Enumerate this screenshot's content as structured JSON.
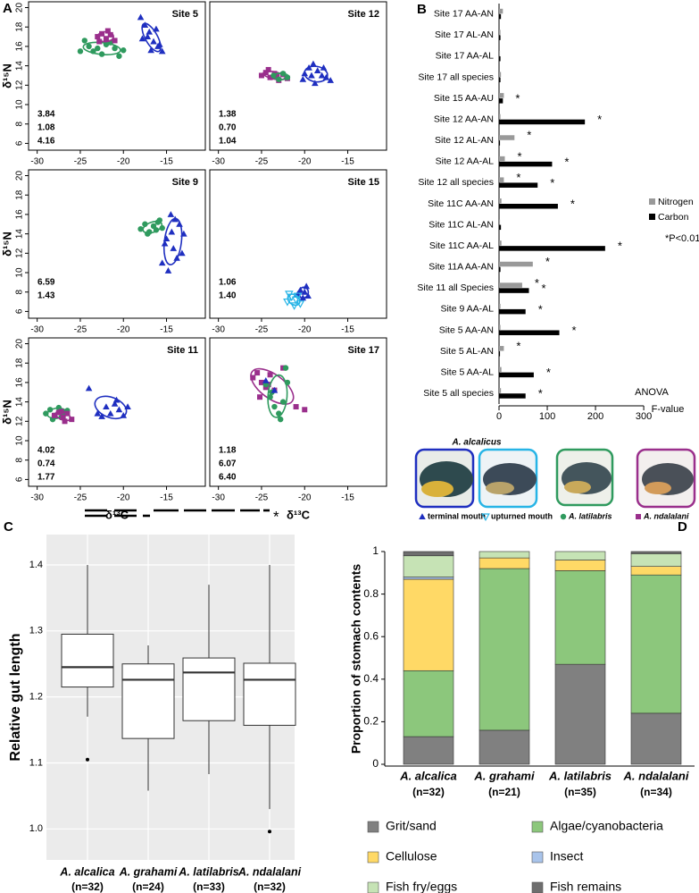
{
  "chart_data": [
    {
      "type": "scatter",
      "panel": "A",
      "title": "Site 5",
      "ylabel": "δ¹⁵N",
      "xlim": [
        -31,
        -10.5
      ],
      "ylim": [
        5.3,
        20.6
      ],
      "xticks": [
        -30,
        -25,
        -20,
        -15
      ],
      "yticks": [
        6,
        8,
        10,
        12,
        14,
        16,
        18,
        20
      ],
      "series": [
        {
          "color": "#1f2fc0",
          "marker": "triangle",
          "x": [
            -18,
            -17.5,
            -17,
            -16.5,
            -16,
            -15.5,
            -17.8,
            -16.8,
            -15.8,
            -17.2,
            -16.2
          ],
          "y": [
            19,
            18.2,
            17.5,
            16.5,
            16,
            15.5,
            16.8,
            15.6,
            16.2,
            17,
            17.8
          ]
        },
        {
          "color": "#2f9a5e",
          "marker": "circle",
          "x": [
            -25,
            -24,
            -23,
            -22.5,
            -22,
            -21,
            -20.5,
            -24.5,
            -23.5,
            -21.5,
            -20
          ],
          "y": [
            15.5,
            16,
            15.8,
            15.2,
            16.2,
            15.8,
            15,
            16.6,
            15.5,
            16.4,
            15.6
          ]
        },
        {
          "color": "#9a2f8c",
          "marker": "square",
          "x": [
            -23,
            -22.5,
            -22,
            -21.5,
            -21,
            -22.8,
            -21.8
          ],
          "y": [
            17,
            17.3,
            16.8,
            17.2,
            16.6,
            16.5,
            17.6
          ]
        }
      ],
      "annotations": [
        {
          "text": "3.84",
          "color": "#1f2fc0"
        },
        {
          "text": "1.08",
          "color": "#9a2f8c"
        },
        {
          "text": "4.16",
          "color": "#2f9a5e"
        }
      ]
    },
    {
      "type": "scatter",
      "title": "Site 12",
      "xlim": [
        -31,
        -10.5
      ],
      "ylim": [
        5.3,
        20.6
      ],
      "xticks": [
        -30,
        -25,
        -20,
        -15
      ],
      "series": [
        {
          "color": "#1f2fc0",
          "marker": "triangle",
          "x": [
            -20,
            -19.5,
            -19,
            -18.5,
            -18,
            -17.5,
            -20.2,
            -18.8,
            -17.8,
            -19.2,
            -17
          ],
          "y": [
            13.2,
            13.8,
            14.2,
            13.5,
            13,
            12.8,
            12.6,
            12.2,
            13.8,
            13,
            12.5
          ]
        },
        {
          "color": "#9a2f8c",
          "marker": "square",
          "x": [
            -25,
            -24.5,
            -24,
            -23.5,
            -23,
            -22.5,
            -24.2,
            -23.2,
            -22
          ],
          "y": [
            13,
            13.3,
            12.8,
            13.2,
            12.5,
            13.1,
            13.6,
            12.9,
            12.7
          ]
        },
        {
          "color": "#2f9a5e",
          "marker": "circle",
          "x": [
            -23,
            -22.5,
            -22,
            -23.6
          ],
          "y": [
            12.6,
            13.2,
            12.8,
            13
          ]
        }
      ],
      "annotations": [
        {
          "text": "1.38",
          "color": "#1f2fc0"
        },
        {
          "text": "0.70",
          "color": "#9a2f8c"
        },
        {
          "text": "1.04",
          "color": "#2f9a5e"
        }
      ]
    },
    {
      "type": "scatter",
      "title": "Site 9",
      "ylabel": "δ¹⁵N",
      "xlim": [
        -31,
        -10.5
      ],
      "ylim": [
        5.3,
        20.6
      ],
      "xticks": [
        -30,
        -25,
        -20,
        -15
      ],
      "yticks": [
        6,
        8,
        10,
        12,
        14,
        16,
        18,
        20
      ],
      "series": [
        {
          "color": "#1f2fc0",
          "marker": "triangle",
          "x": [
            -14.5,
            -14,
            -13.5,
            -13,
            -15,
            -14.2,
            -13.8,
            -15.5,
            -14.8,
            -13.2,
            -14.4,
            -15.2
          ],
          "y": [
            16,
            15.5,
            15,
            14,
            13.5,
            12.5,
            11.5,
            11,
            10.2,
            12,
            14.2,
            13
          ]
        },
        {
          "color": "#2f9a5e",
          "marker": "circle",
          "x": [
            -18,
            -17.5,
            -17,
            -16.5,
            -16,
            -15.5,
            -17.2,
            -16.2,
            -15.8
          ],
          "y": [
            14.5,
            15,
            14.2,
            14.8,
            15.2,
            14.6,
            14,
            14.4,
            15.4
          ]
        }
      ],
      "annotations": [
        {
          "text": "6.59",
          "color": "#1f2fc0"
        },
        {
          "text": "1.43",
          "color": "#2f9a5e"
        }
      ]
    },
    {
      "type": "scatter",
      "title": "Site 15",
      "xlim": [
        -31,
        -10.5
      ],
      "ylim": [
        5.3,
        20.6
      ],
      "xticks": [
        -30,
        -25,
        -20,
        -15
      ],
      "series": [
        {
          "color": "#1f2fc0",
          "marker": "triangle",
          "x": [
            -20.5,
            -20,
            -19.6,
            -20.2,
            -19.8,
            -20.8
          ],
          "y": [
            8.2,
            8,
            7.6,
            7.4,
            8.6,
            7.8
          ]
        },
        {
          "color": "#27b4e6",
          "marker": "triangle-down-open",
          "x": [
            -22,
            -21.5,
            -21,
            -20.5,
            -21.8,
            -20.8,
            -21.2
          ],
          "y": [
            7,
            7.5,
            7.2,
            6.8,
            7.8,
            7.6,
            6.6
          ]
        }
      ],
      "annotations": [
        {
          "text": "1.06",
          "color": "#1f2fc0"
        },
        {
          "text": "1.40",
          "color": "#27b4e6"
        }
      ]
    },
    {
      "type": "scatter",
      "title": "Site 11",
      "ylabel": "δ¹⁵N",
      "xlabel": "δ¹³C",
      "xlim": [
        -31,
        -10.5
      ],
      "ylim": [
        5.3,
        20.6
      ],
      "xticks": [
        -30,
        -25,
        -20,
        -15
      ],
      "yticks": [
        6,
        8,
        10,
        12,
        14,
        16,
        18,
        20
      ],
      "series": [
        {
          "color": "#1f2fc0",
          "marker": "triangle",
          "x": [
            -23,
            -22,
            -21,
            -20.5,
            -20,
            -19.5,
            -22.5,
            -21.5,
            -24,
            -20.8
          ],
          "y": [
            12.8,
            13.5,
            13.8,
            13.2,
            12.6,
            13.5,
            12.5,
            12.8,
            15.4,
            14.2
          ]
        },
        {
          "color": "#2f9a5e",
          "marker": "circle",
          "x": [
            -29,
            -28.5,
            -28,
            -27.5,
            -27,
            -26.5,
            -28.2,
            -27.2
          ],
          "y": [
            12.8,
            13.2,
            12.6,
            13.4,
            12.9,
            13.1,
            12.2,
            12.4
          ]
        },
        {
          "color": "#9a2f8c",
          "marker": "square",
          "x": [
            -28,
            -27.5,
            -27,
            -26.5,
            -26,
            -27.2,
            -26.8
          ],
          "y": [
            12.6,
            12.9,
            12.4,
            12.8,
            12.2,
            13,
            12
          ]
        }
      ],
      "annotations": [
        {
          "text": "4.02",
          "color": "#1f2fc0"
        },
        {
          "text": "0.74",
          "color": "#9a2f8c"
        },
        {
          "text": "1.77",
          "color": "#2f9a5e"
        }
      ]
    },
    {
      "type": "scatter",
      "title": "Site 17",
      "xlabel": "δ¹³C",
      "xlim": [
        -31,
        -10.5
      ],
      "ylim": [
        5.3,
        20.6
      ],
      "xticks": [
        -30,
        -25,
        -20,
        -15
      ],
      "series": [
        {
          "color": "#9a2f8c",
          "marker": "square",
          "x": [
            -26,
            -25.5,
            -25,
            -24.5,
            -24,
            -23.5,
            -22.5,
            -25.2,
            -24.2,
            -21,
            -20
          ],
          "y": [
            16.5,
            17,
            16,
            15.5,
            16.8,
            15.2,
            17.5,
            14.5,
            15.8,
            13.5,
            13.2
          ]
        },
        {
          "color": "#2f9a5e",
          "marker": "circle",
          "x": [
            -24.5,
            -24,
            -23.5,
            -23,
            -22.5,
            -22,
            -23.8,
            -22.8,
            -22.2
          ],
          "y": [
            15.8,
            14.5,
            13.5,
            12.8,
            14,
            16,
            15,
            12.2,
            17.5
          ]
        },
        {
          "color": "#1f2fc0",
          "marker": "triangle",
          "x": [
            -24.5,
            -23.5
          ],
          "y": [
            16.2,
            15.2
          ]
        }
      ],
      "annotations": [
        {
          "text": "1.18",
          "color": "#1f2fc0"
        },
        {
          "text": "6.07",
          "color": "#9a2f8c"
        },
        {
          "text": "6.40",
          "color": "#2f9a5e"
        }
      ]
    },
    {
      "type": "hbar",
      "panel": "B",
      "categories": [
        "Site 17 AA-AN",
        "Site 17 AL-AN",
        "Site 17 AA-AL",
        "Site 17 all species",
        "Site 15 AA-AU",
        "Site 12 AA-AN",
        "Site 12 AL-AN",
        "Site 12 AA-AL",
        "Site 12 all species",
        "Site 11C AA-AN",
        "Site 11C AL-AN",
        "Site 11C AA-AL",
        "Site 11A AA-AN",
        "Site 11 all Species",
        "Site 9 AA-AL",
        "Site 5 AA-AN",
        "Site 5 AL-AN",
        "Site 5 AA-AL",
        "Site 5 all species"
      ],
      "series": [
        {
          "name": "Nitrogen",
          "color": "#999999",
          "values": [
            8,
            3,
            2,
            4,
            10,
            3,
            32,
            12,
            10,
            5,
            2,
            5,
            70,
            48,
            3,
            3,
            10,
            5,
            4
          ],
          "significance": [
            null,
            null,
            null,
            null,
            null,
            null,
            "*",
            "*",
            "*",
            null,
            null,
            null,
            "*",
            "*",
            null,
            null,
            "*",
            null,
            null
          ]
        },
        {
          "name": "Carbon",
          "color": "#000000",
          "values": [
            4,
            3,
            3,
            3,
            8,
            178,
            2,
            110,
            80,
            122,
            4,
            220,
            3,
            62,
            55,
            125,
            2,
            72,
            55
          ],
          "significance": [
            null,
            null,
            null,
            null,
            "*",
            "*",
            null,
            "*",
            "*",
            "*",
            null,
            "*",
            null,
            "*",
            "*",
            "*",
            null,
            "*",
            "*"
          ]
        }
      ],
      "xlim": [
        0,
        335
      ],
      "xticks": [
        0,
        100,
        200,
        300
      ],
      "xlabel": [
        "ANOVA",
        "F-value"
      ],
      "note": "*P<0.01"
    },
    {
      "type": "box",
      "panel": "C",
      "ylabel": "Relative gut length",
      "categories": [
        "A. alcalica",
        "A. grahami",
        "A. latilabris",
        "A. ndalalani"
      ],
      "n_labels": [
        "(n=32)",
        "(n=24)",
        "(n=33)",
        "(n=32)"
      ],
      "boxes": [
        {
          "low": 1.17,
          "q1": 1.215,
          "median": 1.245,
          "q3": 1.295,
          "high": 1.4,
          "outliers": [
            1.105
          ]
        },
        {
          "low": 1.058,
          "q1": 1.137,
          "median": 1.226,
          "q3": 1.25,
          "high": 1.278,
          "outliers": []
        },
        {
          "low": 1.083,
          "q1": 1.164,
          "median": 1.237,
          "q3": 1.259,
          "high": 1.37,
          "outliers": []
        },
        {
          "low": 1.03,
          "q1": 1.157,
          "median": 1.226,
          "q3": 1.251,
          "high": 1.4,
          "outliers": [
            0.996
          ]
        }
      ],
      "ylim": [
        0.953,
        1.446
      ],
      "yticks": [
        {
          "value": 1,
          "label": "1.0"
        },
        1.1,
        1.2,
        1.3,
        1.4
      ],
      "grid": true,
      "significance": "*"
    },
    {
      "type": "stacked_bar",
      "panel": "D",
      "ylabel": "Proportion of stomach contents",
      "categories": [
        "A. alcalica",
        "A. grahami",
        "A. latilabris",
        "A. ndalalani"
      ],
      "n_labels": [
        "(n=32)",
        "(n=21)",
        "(n=35)",
        "(n=34)"
      ],
      "series": [
        {
          "name": "Grit/sand",
          "color": "#808080",
          "values": [
            0.13,
            0.16,
            0.47,
            0.24
          ]
        },
        {
          "name": "Algae/cyanobacteria",
          "color": "#8cc77c",
          "values": [
            0.31,
            0.76,
            0.44,
            0.65
          ]
        },
        {
          "name": "Cellulose",
          "color": "#ffd966",
          "values": [
            0.43,
            0.05,
            0.05,
            0.04
          ]
        },
        {
          "name": "Insect",
          "color": "#a9c4eb",
          "values": [
            0.01,
            0,
            0,
            0
          ]
        },
        {
          "name": "Fish fry/eggs",
          "color": "#c6e3b5",
          "values": [
            0.1,
            0.03,
            0.04,
            0.06
          ]
        },
        {
          "name": "Fish remains",
          "color": "#6e6e6e",
          "values": [
            0.02,
            0,
            0,
            0.01
          ]
        }
      ],
      "ylim": [
        0,
        1
      ],
      "yticks": [
        0,
        0.2,
        0.4,
        0.6,
        0.8,
        1
      ]
    }
  ],
  "species_legend": {
    "title": "A. alcalicus",
    "items": [
      {
        "label": "terminal mouth",
        "color": "#1f2fc0",
        "marker": "triangle"
      },
      {
        "label": "upturned mouth",
        "color": "#27b4e6",
        "marker": "triangle-down-open"
      },
      {
        "label": "A. latilabris",
        "color": "#2f9a5e",
        "marker": "circle"
      },
      {
        "label": "A. ndalalani",
        "color": "#9a2f8c",
        "marker": "square"
      }
    ]
  }
}
